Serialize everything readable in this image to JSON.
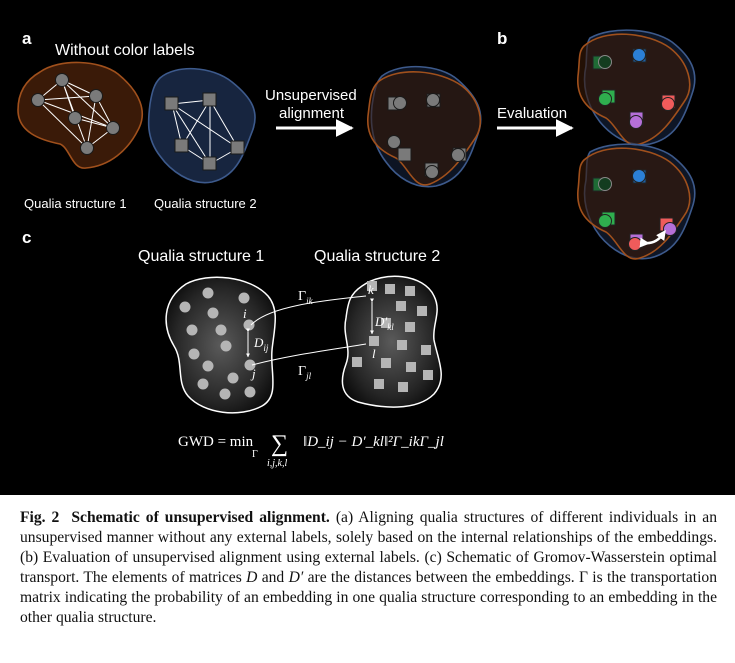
{
  "panel_a": {
    "label": "a",
    "title": "Without color labels",
    "structure1_label": "Qualia structure 1",
    "structure2_label": "Qualia structure 2",
    "arrow_label_line1": "Unsupervised",
    "arrow_label_line2": "alignment"
  },
  "panel_b": {
    "label": "b",
    "arrow_label": "Evaluation"
  },
  "panel_c": {
    "label": "c",
    "structure1_label": "Qualia structure 1",
    "structure2_label": "Qualia structure 2",
    "gamma_ik": "Γ",
    "gamma_ik_sub": "ik",
    "gamma_jl": "Γ",
    "gamma_jl_sub": "jl",
    "d_ij": "D",
    "d_ij_sub": "ij",
    "d_kl": "D′",
    "d_kl_sub": "kl",
    "point_i": "i",
    "point_j": "j",
    "point_k": "k",
    "point_l": "l",
    "formula_lhs": "GWD = min",
    "formula_min_sub": "Γ",
    "formula_sigma": "∑",
    "formula_sum_sub": "i,j,k,l",
    "formula_rhs": "‖D_ij − D′_kl‖²Γ_ikΓ_jl"
  },
  "caption": {
    "label": "Fig. 2",
    "title": "Schematic of unsupervised alignment.",
    "text_a": "(a) Aligning qualia structures of different individuals in an unsupervised manner without any external labels, solely based on the internal relationships of the embeddings.",
    "text_b": "(b) Evaluation of unsupervised alignment using external labels.",
    "text_c_1": "(c) Schematic of Gromov-Wasserstein optimal transport. The elements of matrices",
    "text_c_D": "D",
    "text_c_and": "and",
    "text_c_Dp": "D′",
    "text_c_2": "are the distances between the embeddings. Γ is the transportation matrix indicating the probability of an embedding in one qualia structure corresponding to an embedding in the other qualia structure."
  },
  "colors": {
    "background": "#000000",
    "structure1_fill": "#3a1a08",
    "structure1_edge": "#a0501c",
    "structure2_fill": "#17253f",
    "structure2_edge": "#3d5a8c",
    "node_gray": "#7a7a7a",
    "marker_green": "#2fae4e",
    "marker_red": "#ef5b5b",
    "marker_purple": "#b56fd8",
    "marker_blue": "#2b7fd6",
    "caption_bg": "#ffffff"
  }
}
